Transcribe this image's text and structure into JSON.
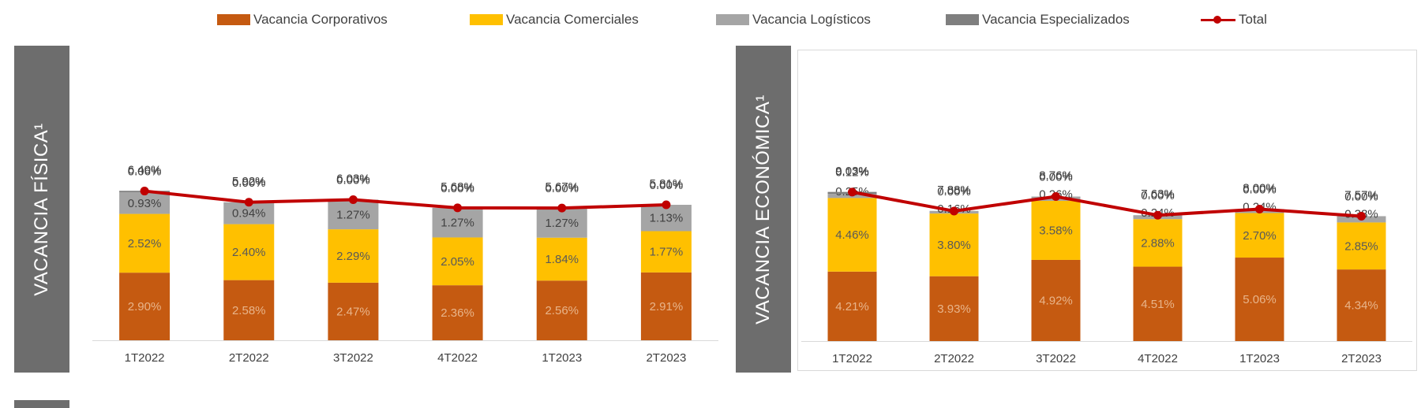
{
  "legend": {
    "corporativos": "Vacancia Corporativos",
    "comerciales": "Vacancia Comerciales",
    "logisticos": "Vacancia Logísticos",
    "especializados": "Vacancia Especializados",
    "total": "Total"
  },
  "colors": {
    "corporativos": "#C55A11",
    "comerciales": "#FFC000",
    "logisticos": "#A5A5A5",
    "especializados": "#7F7F7F",
    "total": "#C00000"
  },
  "chart_data": [
    {
      "type": "bar",
      "stacked": true,
      "title": "VACANCIA FÍSICA¹",
      "categories": [
        "1T2022",
        "2T2022",
        "3T2022",
        "4T2022",
        "1T2023",
        "2T2023"
      ],
      "series": [
        {
          "name": "Vacancia Corporativos",
          "values": [
            2.9,
            2.58,
            2.47,
            2.36,
            2.56,
            2.91
          ],
          "labels": [
            "2.90%",
            "2.58%",
            "2.47%",
            "2.36%",
            "2.56%",
            "2.91%"
          ]
        },
        {
          "name": "Vacancia Comerciales",
          "values": [
            2.52,
            2.4,
            2.29,
            2.05,
            1.84,
            1.77
          ],
          "labels": [
            "2.52%",
            "2.40%",
            "2.29%",
            "2.05%",
            "1.84%",
            "1.77%"
          ]
        },
        {
          "name": "Vacancia Logísticos",
          "values": [
            0.93,
            0.94,
            1.27,
            1.27,
            1.27,
            1.13
          ],
          "labels": [
            "0.93%",
            "0.94%",
            "1.27%",
            "1.27%",
            "1.27%",
            "1.13%"
          ]
        },
        {
          "name": "Vacancia Especializados",
          "values": [
            0.06,
            0.0,
            0.0,
            0.0,
            0.0,
            0.0
          ],
          "labels": [
            "0.06%",
            "0.00%",
            "0.00%",
            "0.00%",
            "0.00%",
            "0.00%"
          ]
        }
      ],
      "total": {
        "name": "Total",
        "values": [
          6.4,
          5.92,
          6.03,
          5.68,
          5.67,
          5.81
        ],
        "labels": [
          "6.40%",
          "5.92%",
          "6.03%",
          "5.68%",
          "5.67%",
          "5.81%"
        ]
      },
      "ylim": [
        0,
        7.5
      ],
      "grid": false,
      "legend_position": "top"
    },
    {
      "type": "bar",
      "stacked": true,
      "title": "VACANCIA ECONÓMICA¹",
      "categories": [
        "1T2022",
        "2T2022",
        "3T2022",
        "4T2022",
        "1T2023",
        "2T2023"
      ],
      "series": [
        {
          "name": "Vacancia Corporativos",
          "values": [
            4.21,
            3.93,
            4.92,
            4.51,
            5.06,
            4.34
          ],
          "labels": [
            "4.21%",
            "3.93%",
            "4.92%",
            "4.51%",
            "5.06%",
            "4.34%"
          ]
        },
        {
          "name": "Vacancia Comerciales",
          "values": [
            4.46,
            3.8,
            3.58,
            2.88,
            2.7,
            2.85
          ],
          "labels": [
            "4.46%",
            "3.80%",
            "3.58%",
            "2.88%",
            "2.70%",
            "2.85%"
          ]
        },
        {
          "name": "Vacancia Logísticos",
          "values": [
            0.25,
            0.16,
            0.26,
            0.24,
            0.24,
            0.38
          ],
          "labels": [
            "0.25%",
            "0.16%",
            "0.26%",
            "0.24%",
            "0.24%",
            "0.38%"
          ]
        },
        {
          "name": "Vacancia Especializados",
          "values": [
            0.12,
            0.0,
            0.0,
            0.0,
            0.0,
            0.0
          ],
          "labels": [
            "0.12%",
            "0.00%",
            "0.00%",
            "0.00%",
            "0.00%",
            "0.00%"
          ]
        }
      ],
      "total": {
        "name": "Total",
        "values": [
          9.03,
          7.88,
          8.76,
          7.63,
          8.0,
          7.57
        ],
        "labels": [
          "9.03%",
          "7.88%",
          "8.76%",
          "7.63%",
          "8.00%",
          "7.57%"
        ]
      },
      "ylim": [
        0,
        10.6
      ],
      "grid": false,
      "legend_position": "top"
    }
  ]
}
